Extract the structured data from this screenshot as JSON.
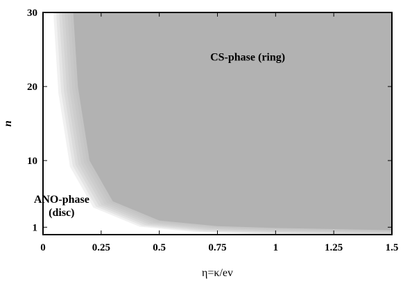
{
  "chart_data": {
    "type": "heatmap",
    "title": "",
    "xlabel": "η=κ/ev",
    "ylabel": "n",
    "xlim": [
      0,
      1.5
    ],
    "ylim": [
      0,
      30
    ],
    "x_ticks": [
      {
        "value": 0,
        "label": "0"
      },
      {
        "value": 0.25,
        "label": "0.25"
      },
      {
        "value": 0.5,
        "label": "0.5"
      },
      {
        "value": 0.75,
        "label": "0.75"
      },
      {
        "value": 1,
        "label": "1"
      },
      {
        "value": 1.25,
        "label": "1.25"
      },
      {
        "value": 1.5,
        "label": "1.5"
      }
    ],
    "y_ticks": [
      {
        "value": 1,
        "label": "1"
      },
      {
        "value": 10,
        "label": "10"
      },
      {
        "value": 20,
        "label": "20"
      },
      {
        "value": 30,
        "label": "30"
      }
    ],
    "regions": [
      {
        "name": "ANO-phase (disc)",
        "lines": [
          "ANO-phase",
          "(disc)"
        ],
        "color": "#ffffff",
        "label_pos": [
          0.08,
          4.3
        ]
      },
      {
        "name": "CS-phase (ring)",
        "lines": [
          "CS-phase (ring)"
        ],
        "color": "#b2b2b2",
        "label_pos": [
          0.88,
          23.5
        ]
      }
    ],
    "boundary": [
      {
        "x": 0.13,
        "n": 30
      },
      {
        "x": 0.15,
        "n": 20
      },
      {
        "x": 0.2,
        "n": 10
      },
      {
        "x": 0.3,
        "n": 4.5
      },
      {
        "x": 0.5,
        "n": 1.9
      },
      {
        "x": 0.75,
        "n": 1.15
      },
      {
        "x": 1.0,
        "n": 0.9
      },
      {
        "x": 1.5,
        "n": 0.6
      }
    ],
    "colors": {
      "phase_fill": "#b2b2b2",
      "background": "#ffffff",
      "axes": "#000000"
    },
    "grid": false,
    "legend": "none"
  }
}
